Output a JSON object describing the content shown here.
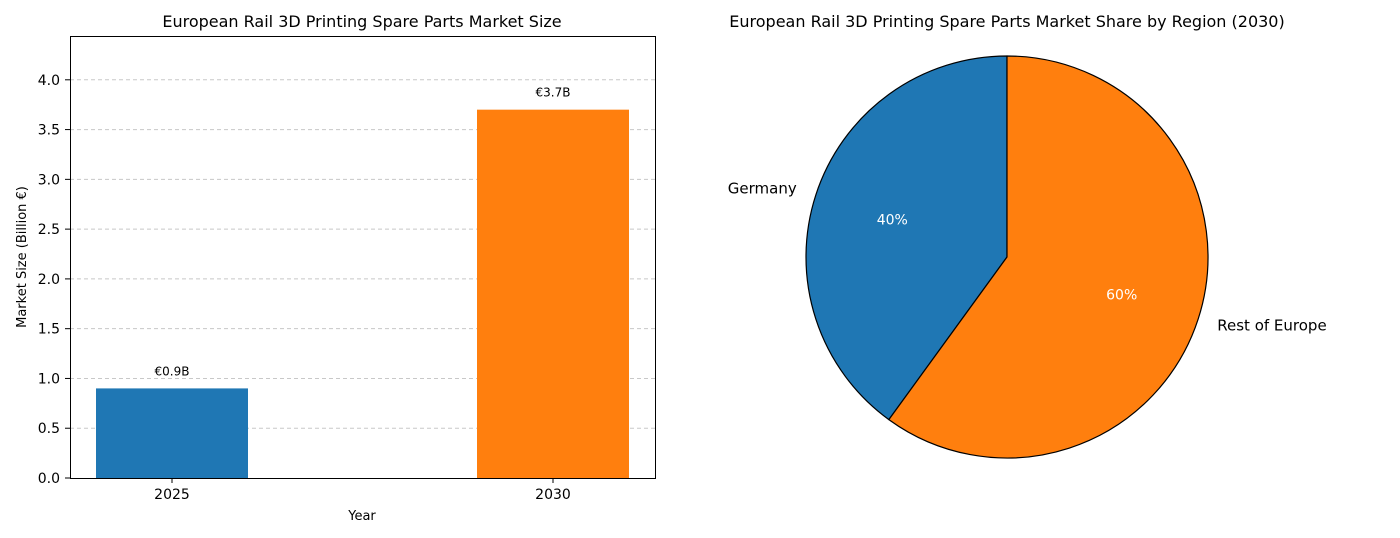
{
  "chart_data": [
    {
      "type": "bar",
      "title": "European Rail 3D Printing Spare Parts Market Size",
      "xlabel": "Year",
      "ylabel": "Market Size (Billion €)",
      "categories": [
        "2025",
        "2030"
      ],
      "values": [
        0.9,
        3.7
      ],
      "data_labels": [
        "€0.9B",
        "€3.7B"
      ],
      "colors": [
        "#1f77b4",
        "#ff7f0e"
      ],
      "ylim": [
        0,
        4.44
      ],
      "yticks": [
        0.0,
        0.5,
        1.0,
        1.5,
        2.0,
        2.5,
        3.0,
        3.5,
        4.0
      ],
      "ytick_labels": [
        "0.0",
        "0.5",
        "1.0",
        "1.5",
        "2.0",
        "2.5",
        "3.0",
        "3.5",
        "4.0"
      ],
      "grid": true
    },
    {
      "type": "pie",
      "title": "European Rail 3D Printing Spare Parts Market Share by Region (2030)",
      "labels": [
        "Germany",
        "Rest of Europe"
      ],
      "values": [
        40,
        60
      ],
      "pct_labels": [
        "40%",
        "60%"
      ],
      "colors": [
        "#1f77b4",
        "#ff7f0e"
      ],
      "start_angle": 90,
      "direction": "counterclockwise"
    }
  ]
}
